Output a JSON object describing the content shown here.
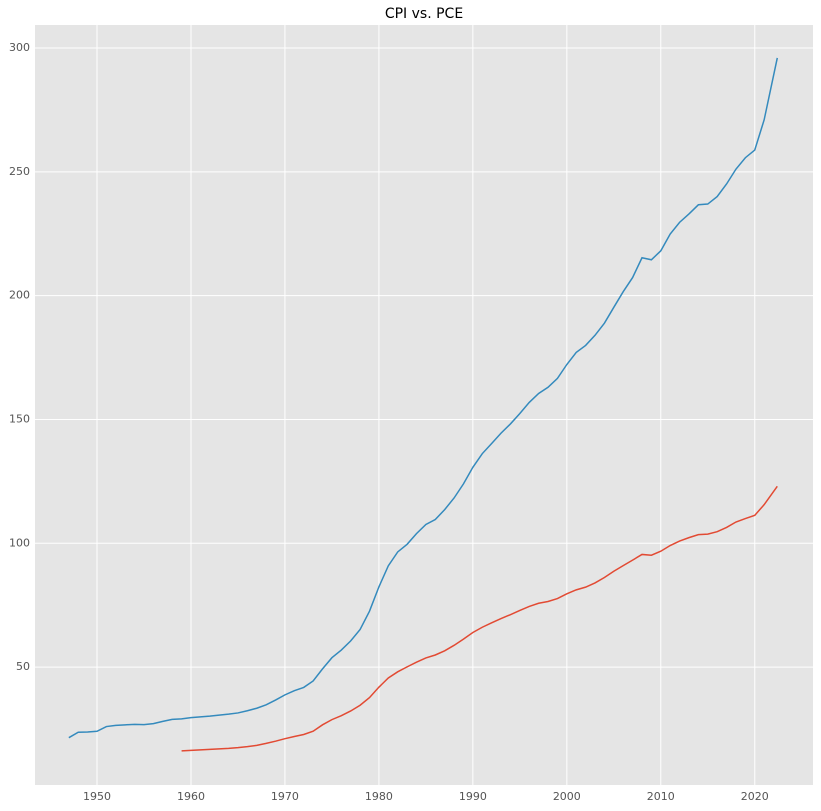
{
  "chart_data": {
    "type": "line",
    "title": "CPI vs. PCE",
    "xlim": [
      1943.4,
      2026.2
    ],
    "ylim": [
      2.4,
      309.3
    ],
    "xticks": [
      1950,
      1960,
      1970,
      1980,
      1990,
      2000,
      2010,
      2020
    ],
    "yticks": [
      50,
      100,
      150,
      200,
      250,
      300
    ],
    "grid": true,
    "series": [
      {
        "color": "#348ABD",
        "x": [
          1947,
          1948,
          1949,
          1950,
          1951,
          1952,
          1953,
          1954,
          1955,
          1956,
          1957,
          1958,
          1959,
          1960,
          1961,
          1962,
          1963,
          1964,
          1965,
          1966,
          1967,
          1968,
          1969,
          1970,
          1971,
          1972,
          1973,
          1974,
          1975,
          1976,
          1977,
          1978,
          1979,
          1980,
          1981,
          1982,
          1983,
          1984,
          1985,
          1986,
          1987,
          1988,
          1989,
          1990,
          1991,
          1992,
          1993,
          1994,
          1995,
          1996,
          1997,
          1998,
          1999,
          2000,
          2001,
          2002,
          2003,
          2004,
          2005,
          2006,
          2007,
          2008,
          2009,
          2010,
          2011,
          2012,
          2013,
          2014,
          2015,
          2016,
          2017,
          2018,
          2019,
          2020,
          2021,
          2022.4
        ],
        "values": [
          21.5,
          23.7,
          23.8,
          24.1,
          26.0,
          26.5,
          26.7,
          26.9,
          26.8,
          27.2,
          28.1,
          28.9,
          29.1,
          29.6,
          29.9,
          30.2,
          30.6,
          31.0,
          31.5,
          32.4,
          33.4,
          34.8,
          36.7,
          38.8,
          40.5,
          41.8,
          44.4,
          49.3,
          53.8,
          56.9,
          60.6,
          65.2,
          72.6,
          82.4,
          90.9,
          96.5,
          99.6,
          103.9,
          107.6,
          109.6,
          113.6,
          118.3,
          124.0,
          130.7,
          136.2,
          140.3,
          144.5,
          148.2,
          152.4,
          156.9,
          160.5,
          163.0,
          166.6,
          172.2,
          177.1,
          179.9,
          184.0,
          188.9,
          195.3,
          201.6,
          207.3,
          215.3,
          214.5,
          218.1,
          224.9,
          229.6,
          233.0,
          236.7,
          237.0,
          240.0,
          245.1,
          251.1,
          255.7,
          258.8,
          271.0,
          296.0
        ]
      },
      {
        "color": "#E24A33",
        "x": [
          1959,
          1960,
          1961,
          1962,
          1963,
          1964,
          1965,
          1966,
          1967,
          1968,
          1969,
          1970,
          1971,
          1972,
          1973,
          1974,
          1975,
          1976,
          1977,
          1978,
          1979,
          1980,
          1981,
          1982,
          1983,
          1984,
          1985,
          1986,
          1987,
          1988,
          1989,
          1990,
          1991,
          1992,
          1993,
          1994,
          1995,
          1996,
          1997,
          1998,
          1999,
          2000,
          2001,
          2002,
          2003,
          2004,
          2005,
          2006,
          2007,
          2008,
          2009,
          2010,
          2011,
          2012,
          2013,
          2014,
          2015,
          2016,
          2017,
          2018,
          2019,
          2020,
          2021,
          2022.4
        ],
        "values": [
          16.2,
          16.4,
          16.6,
          16.8,
          17.0,
          17.2,
          17.5,
          17.9,
          18.4,
          19.2,
          20.1,
          21.1,
          22.0,
          22.8,
          24.1,
          26.7,
          28.8,
          30.4,
          32.3,
          34.6,
          37.7,
          41.9,
          45.6,
          48.1,
          50.1,
          52.0,
          53.7,
          54.9,
          56.6,
          58.8,
          61.3,
          64.0,
          66.1,
          67.9,
          69.6,
          71.2,
          72.9,
          74.5,
          75.8,
          76.5,
          77.7,
          79.6,
          81.2,
          82.3,
          84.0,
          86.2,
          88.7,
          91.0,
          93.2,
          95.5,
          95.2,
          96.8,
          99.1,
          100.9,
          102.3,
          103.5,
          103.7,
          104.7,
          106.4,
          108.6,
          110.0,
          111.3,
          115.6,
          123.0
        ]
      }
    ]
  }
}
